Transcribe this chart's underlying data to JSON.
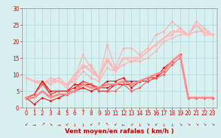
{
  "background_color": "#d8f0f0",
  "grid_color": "#b0d8d8",
  "xlabel": "Vent moyen/en rafales ( km/h )",
  "xlim": [
    -0.5,
    23.5
  ],
  "ylim": [
    0,
    30
  ],
  "xticks": [
    0,
    1,
    2,
    3,
    4,
    5,
    6,
    7,
    8,
    9,
    10,
    11,
    12,
    13,
    14,
    15,
    16,
    17,
    18,
    19,
    20,
    21,
    22,
    23
  ],
  "yticks": [
    0,
    5,
    10,
    15,
    20,
    25,
    30
  ],
  "label_color": "#cc0000",
  "tick_color": "#cc0000",
  "spine_color": "#888888",
  "tick_fontsize": 5.5,
  "axis_fontsize": 6.5,
  "series_light": [
    {
      "x": [
        0,
        1,
        2,
        3,
        4,
        5,
        6,
        7,
        8,
        9,
        10,
        11,
        12,
        13,
        14,
        15,
        16,
        17,
        18,
        19,
        20,
        21,
        22,
        23
      ],
      "y": [
        9,
        8,
        8,
        7,
        8,
        6,
        9,
        16,
        12,
        9,
        19,
        12,
        18,
        18,
        16,
        18,
        22,
        23,
        26,
        24,
        22,
        26,
        24,
        22
      ],
      "color": "#ffaaaa",
      "lw": 0.8,
      "marker": "D",
      "ms": 2.0
    },
    {
      "x": [
        0,
        1,
        2,
        3,
        4,
        5,
        6,
        7,
        8,
        9,
        10,
        11,
        12,
        13,
        14,
        15,
        16,
        17,
        18,
        19,
        20,
        21,
        22,
        23
      ],
      "y": [
        9,
        8,
        7,
        9,
        8,
        7,
        10,
        12,
        13,
        9,
        14,
        11,
        13,
        14,
        14,
        15,
        17,
        20,
        21,
        22,
        22,
        23,
        23,
        22
      ],
      "color": "#ffaaaa",
      "lw": 0.8,
      "marker": "D",
      "ms": 2.0
    },
    {
      "x": [
        0,
        1,
        2,
        3,
        4,
        5,
        6,
        7,
        8,
        9,
        10,
        11,
        12,
        13,
        14,
        15,
        16,
        17,
        18,
        19,
        20,
        21,
        22,
        23
      ],
      "y": [
        9,
        8,
        7,
        8,
        9,
        7,
        8,
        11,
        9,
        8,
        12,
        11,
        15,
        14,
        15,
        17,
        19,
        21,
        22,
        24,
        22,
        25,
        22,
        22
      ],
      "color": "#ffaaaa",
      "lw": 0.8,
      "marker": "D",
      "ms": 2.0
    }
  ],
  "series_avg_light": [
    {
      "x": [
        0,
        1,
        2,
        3,
        4,
        5,
        6,
        7,
        8,
        9,
        10,
        11,
        12,
        13,
        14,
        15,
        16,
        17,
        18,
        19,
        20,
        21,
        22,
        23
      ],
      "y": [
        9,
        8,
        7,
        8,
        8,
        7,
        9,
        13,
        11,
        9,
        15,
        11,
        15,
        15,
        15,
        17,
        19,
        21,
        23,
        23,
        22,
        25,
        23,
        22
      ],
      "color": "#ffbbbb",
      "lw": 2.0,
      "marker": null,
      "ms": 0
    }
  ],
  "series_dark": [
    {
      "x": [
        0,
        1,
        2,
        3,
        4,
        5,
        6,
        7,
        8,
        9,
        10,
        11,
        12,
        13,
        14,
        15,
        16,
        17,
        18,
        19,
        20,
        21,
        22,
        23
      ],
      "y": [
        3,
        4,
        8,
        5,
        5,
        5,
        7,
        7,
        7,
        5,
        5,
        7,
        8,
        8,
        8,
        9,
        9,
        11,
        14,
        16,
        3,
        3,
        3,
        3
      ],
      "color": "#ff0000",
      "lw": 0.8,
      "marker": "D",
      "ms": 2.0
    },
    {
      "x": [
        0,
        1,
        2,
        3,
        4,
        5,
        6,
        7,
        8,
        9,
        10,
        11,
        12,
        13,
        14,
        15,
        16,
        17,
        18,
        19,
        20,
        21,
        22,
        23
      ],
      "y": [
        3,
        1,
        3,
        2,
        3,
        4,
        5,
        6,
        5,
        6,
        6,
        7,
        7,
        7,
        8,
        9,
        10,
        11,
        14,
        16,
        3,
        3,
        3,
        3
      ],
      "color": "#ff0000",
      "lw": 0.8,
      "marker": "D",
      "ms": 2.0
    },
    {
      "x": [
        0,
        1,
        2,
        3,
        4,
        5,
        6,
        7,
        8,
        9,
        10,
        11,
        12,
        13,
        14,
        15,
        16,
        17,
        18,
        19,
        20,
        21,
        22,
        23
      ],
      "y": [
        3,
        4,
        8,
        4,
        5,
        5,
        6,
        8,
        7,
        6,
        8,
        8,
        9,
        6,
        8,
        8,
        9,
        12,
        14,
        16,
        3,
        3,
        3,
        3
      ],
      "color": "#ff0000",
      "lw": 0.8,
      "marker": "D",
      "ms": 2.0
    },
    {
      "x": [
        0,
        1,
        2,
        3,
        4,
        5,
        6,
        7,
        8,
        9,
        10,
        11,
        12,
        13,
        14,
        15,
        16,
        17,
        18,
        19,
        20,
        21,
        22,
        23
      ],
      "y": [
        3,
        4,
        7,
        4,
        5,
        5,
        5,
        8,
        7,
        5,
        5,
        5,
        7,
        5,
        6,
        8,
        9,
        10,
        13,
        15,
        3,
        3,
        3,
        3
      ],
      "color": "#ff5555",
      "lw": 0.8,
      "marker": "D",
      "ms": 2.0
    }
  ],
  "series_avg_dark": [
    {
      "x": [
        0,
        1,
        2,
        3,
        4,
        5,
        6,
        7,
        8,
        9,
        10,
        11,
        12,
        13,
        14,
        15,
        16,
        17,
        18,
        19,
        20,
        21,
        22,
        23
      ],
      "y": [
        3,
        3,
        5,
        3,
        4,
        4,
        5,
        7,
        6,
        6,
        7,
        7,
        8,
        7,
        8,
        9,
        10,
        11,
        14,
        16,
        3,
        3,
        3,
        3
      ],
      "color": "#ff8888",
      "lw": 2.0,
      "marker": null,
      "ms": 0
    }
  ],
  "arrow_symbols": [
    "↙",
    "→",
    "↗",
    "↘",
    "→",
    "↙",
    "↓",
    "↓",
    "↙",
    "↑",
    "↖",
    "↙",
    "←",
    "↙",
    "↓",
    "↘",
    "↙",
    "↓",
    "↓",
    "↘",
    "↘",
    "↘",
    "↘",
    "↘"
  ]
}
